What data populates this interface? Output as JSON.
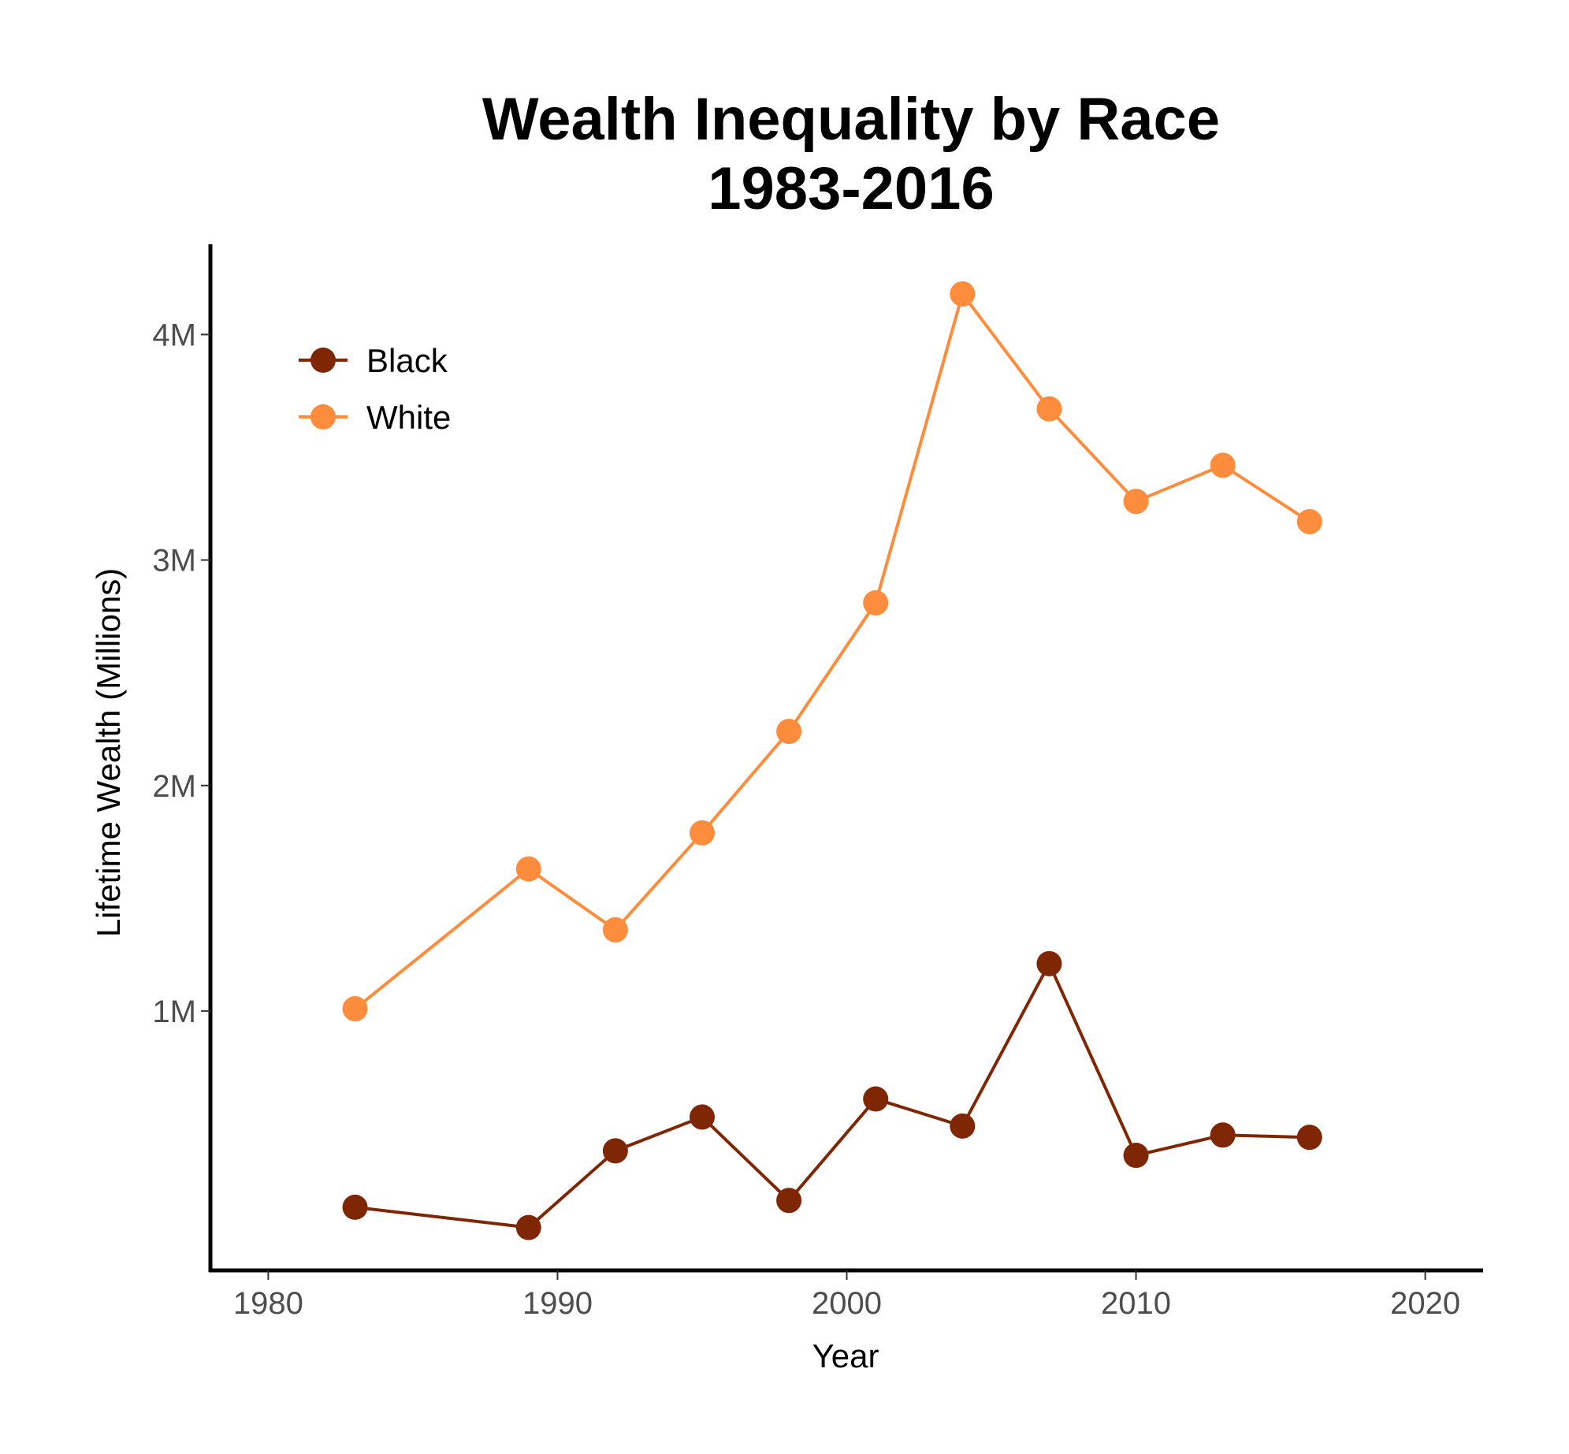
{
  "chart_data": {
    "type": "line",
    "title_line1": "Wealth Inequality by Race",
    "title_line2": "1983-2016",
    "xlabel": "Year",
    "ylabel": "Lifetime Wealth (Millions)",
    "x_ticks": [
      1980,
      1990,
      2000,
      2010,
      2020
    ],
    "x_tick_labels": [
      "1980",
      "1990",
      "2000",
      "2010",
      "2020"
    ],
    "y_ticks": [
      1000000,
      2000000,
      3000000,
      4000000
    ],
    "y_tick_labels": [
      "1M",
      "2M",
      "3M",
      "4M"
    ],
    "xlim": [
      1978,
      2022
    ],
    "ylim": [
      -150000,
      4400000
    ],
    "grid": false,
    "legend_position": "top-left",
    "x": [
      1983,
      1989,
      1992,
      1995,
      1998,
      2001,
      2004,
      2007,
      2010,
      2013,
      2016
    ],
    "series": [
      {
        "name": "Black",
        "color": "#7f2704",
        "values": [
          130000,
          40000,
          380000,
          530000,
          160000,
          610000,
          490000,
          1210000,
          360000,
          450000,
          440000
        ]
      },
      {
        "name": "White",
        "color": "#fd8d3c",
        "values": [
          1010000,
          1630000,
          1360000,
          1790000,
          2240000,
          2810000,
          4180000,
          3670000,
          3260000,
          3420000,
          3170000
        ]
      }
    ]
  }
}
